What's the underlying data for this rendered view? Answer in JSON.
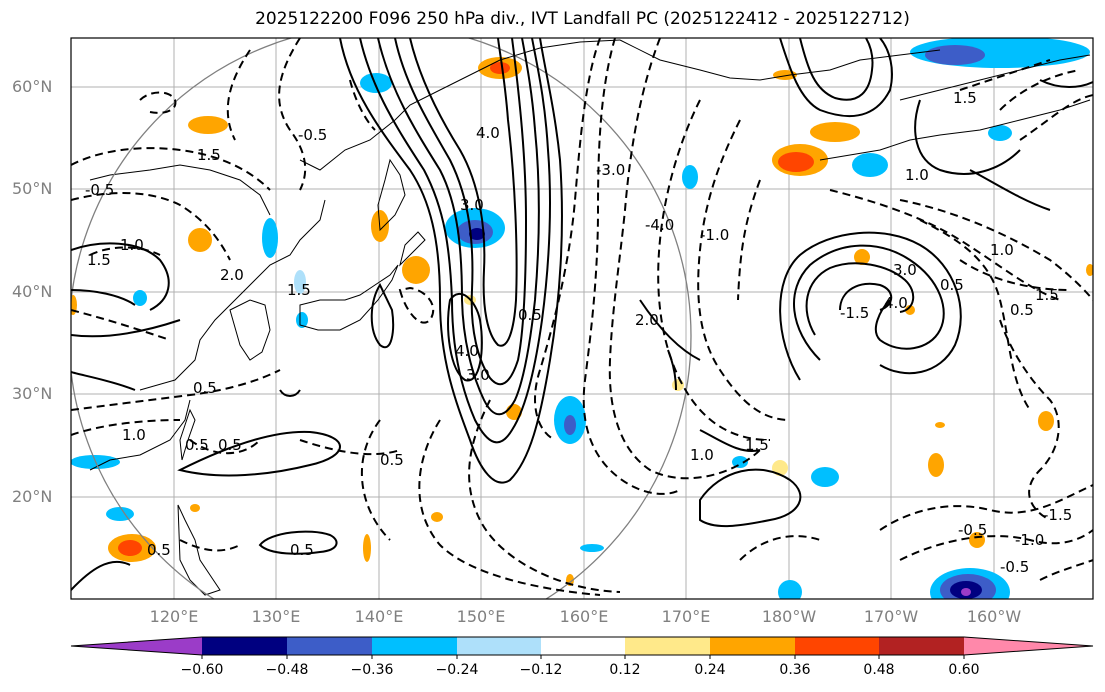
{
  "title": "2025122200 F096 250 hPa div., IVT Landfall PC (2025122412 - 2025122712)",
  "lat_labels": [
    "60°N",
    "50°N",
    "40°N",
    "30°N",
    "20°N"
  ],
  "lon_labels": [
    "120°E",
    "130°E",
    "140°E",
    "150°E",
    "160°E",
    "170°E",
    "180°W",
    "170°W",
    "160°W"
  ],
  "colorbar": {
    "ticks": [
      "−0.60",
      "−0.48",
      "−0.36",
      "−0.24",
      "−0.12",
      "0.12",
      "0.24",
      "0.36",
      "0.48",
      "0.60"
    ],
    "colors": [
      "#9b3cc8",
      "#000080",
      "#3d5dc8",
      "#00bfff",
      "#aee0fa",
      "#ffffff",
      "#ffe98a",
      "#ffa500",
      "#ff4500",
      "#b22222",
      "#ff88aa"
    ]
  },
  "contour_labels": [
    "4.0",
    "3.0",
    "2.0",
    "1.5",
    "1.0",
    "0.5",
    "-0.5",
    "-1.0",
    "-1.5",
    "-2.0",
    "-3.0",
    "-4.0"
  ]
}
